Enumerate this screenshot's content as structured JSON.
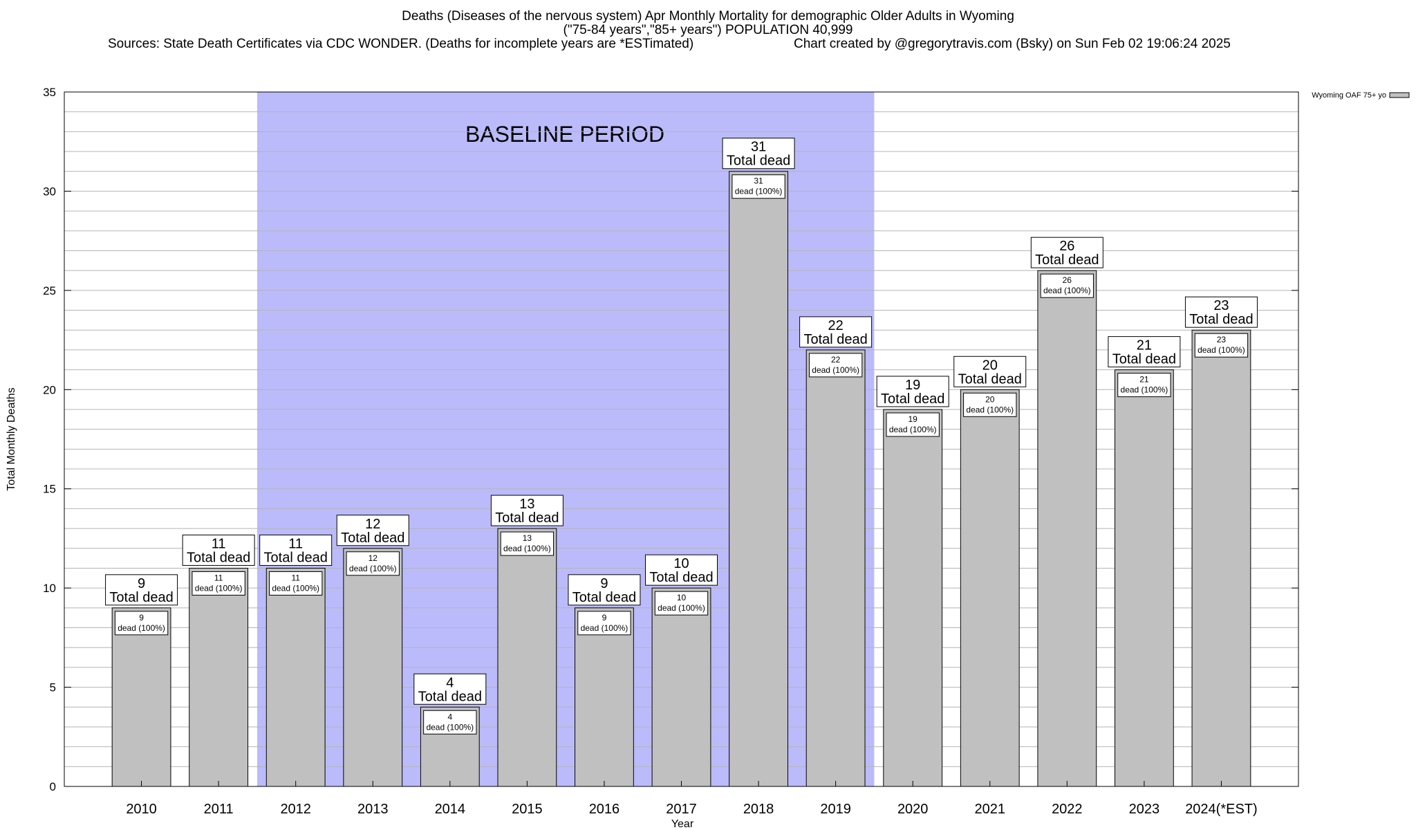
{
  "title": {
    "line1": "Deaths (Diseases of the nervous system) Apr Monthly Mortality for demographic Older Adults in Wyoming",
    "line2": "(\"75-84 years\",\"85+ years\") POPULATION 40,999",
    "sources": "Sources: State Death Certificates via CDC WONDER. (Deaths for incomplete years are *ESTimated)",
    "credit": "Chart created by @gregorytravis.com (Bsky) on Sun Feb 02 19:06:24 2025"
  },
  "chart_data": {
    "type": "bar",
    "categories": [
      "2010",
      "2011",
      "2012",
      "2013",
      "2014",
      "2015",
      "2016",
      "2017",
      "2018",
      "2019",
      "2020",
      "2021",
      "2022",
      "2023",
      "2024(*EST)"
    ],
    "series": [
      {
        "name": "Wyoming OAF 75+ yo",
        "values": [
          9,
          11,
          11,
          12,
          4,
          13,
          9,
          10,
          31,
          22,
          19,
          20,
          26,
          21,
          23
        ]
      }
    ],
    "xlabel": "Year",
    "ylabel": "Total Monthly Deaths",
    "ylim": [
      0,
      35
    ],
    "yticks": [
      0,
      5,
      10,
      15,
      20,
      25,
      30,
      35
    ],
    "grid": true,
    "legend_position": "top-right",
    "baseline_period": {
      "label": "BASELINE PERIOD",
      "start": "2012",
      "end": "2019"
    },
    "total_label_suffix": "Total dead",
    "inner_label_suffix": "dead (100%)",
    "colors": {
      "bar": "#c0c0c0",
      "baseline_band": "#bbbbfb",
      "grid": "#b4b4b4"
    }
  }
}
